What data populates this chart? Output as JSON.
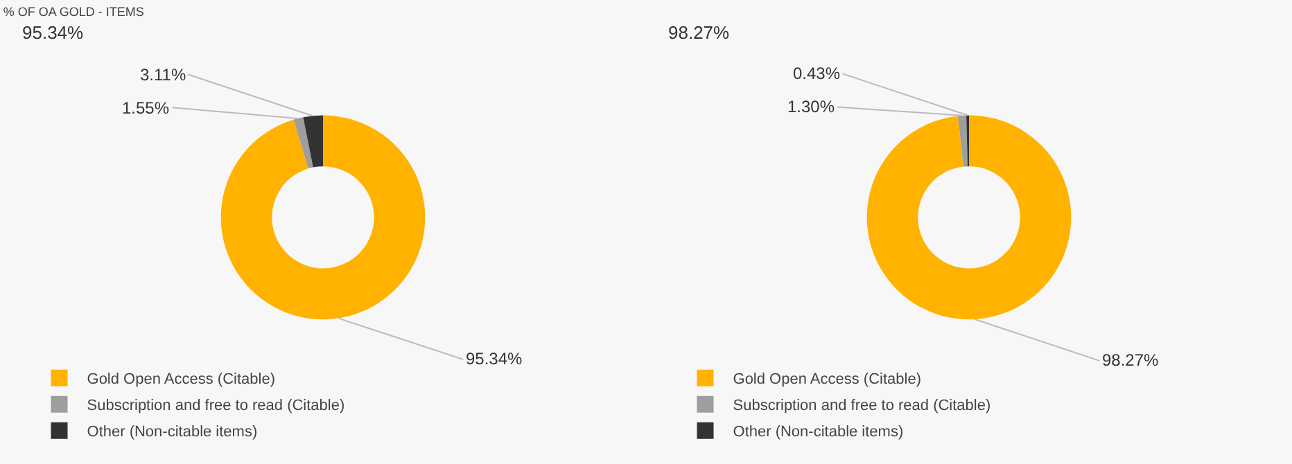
{
  "chart_data": [
    {
      "type": "donut",
      "title": "% OF OA GOLD - ITEMS",
      "subtitle": "95.34%",
      "categories": [
        "Gold Open Access (Citable)",
        "Subscription and free to read (Citable)",
        "Other (Non-citable items)"
      ],
      "values": [
        95.34,
        1.55,
        3.11
      ],
      "colors": [
        "#ffb300",
        "#9e9e9e",
        "#333333"
      ],
      "value_labels": [
        "95.34%",
        "1.55%",
        "3.11%"
      ],
      "legend": "bottom"
    },
    {
      "type": "donut",
      "subtitle": "98.27%",
      "categories": [
        "Gold Open Access (Citable)",
        "Subscription and free to read (Citable)",
        "Other (Non-citable items)"
      ],
      "values": [
        98.27,
        1.3,
        0.43
      ],
      "colors": [
        "#ffb300",
        "#9e9e9e",
        "#333333"
      ],
      "value_labels": [
        "98.27%",
        "1.30%",
        "0.43%"
      ],
      "legend": "bottom"
    }
  ]
}
